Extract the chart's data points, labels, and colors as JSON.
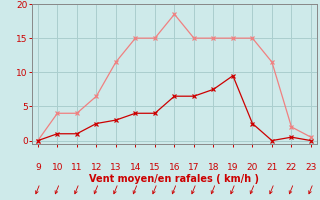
{
  "x": [
    9,
    10,
    11,
    12,
    13,
    14,
    15,
    16,
    17,
    18,
    19,
    20,
    21,
    22,
    23
  ],
  "y_rafales": [
    0,
    4,
    4,
    6.5,
    11.5,
    15,
    15,
    18.5,
    15,
    15,
    15,
    15,
    11.5,
    2,
    0.5
  ],
  "y_moyen": [
    0,
    1,
    1,
    2.5,
    3,
    4,
    4,
    6.5,
    6.5,
    7.5,
    9.5,
    2.5,
    0,
    0.5,
    0
  ],
  "color_rafales": "#f08080",
  "color_moyen": "#cc0000",
  "xlabel": "Vent moyen/en rafales ( km/h )",
  "xlabel_color": "#cc0000",
  "background_color": "#ceeaea",
  "grid_color": "#aacece",
  "tick_color": "#cc0000",
  "spine_color": "#888888",
  "ylim": [
    -0.5,
    20
  ],
  "xlim": [
    8.7,
    23.3
  ],
  "yticks": [
    0,
    5,
    10,
    15,
    20
  ],
  "xticks": [
    9,
    10,
    11,
    12,
    13,
    14,
    15,
    16,
    17,
    18,
    19,
    20,
    21,
    22,
    23
  ],
  "wind_arrows": [
    9,
    10,
    11,
    12,
    13,
    14,
    15,
    16,
    17,
    18,
    19,
    20,
    21,
    22,
    23
  ]
}
